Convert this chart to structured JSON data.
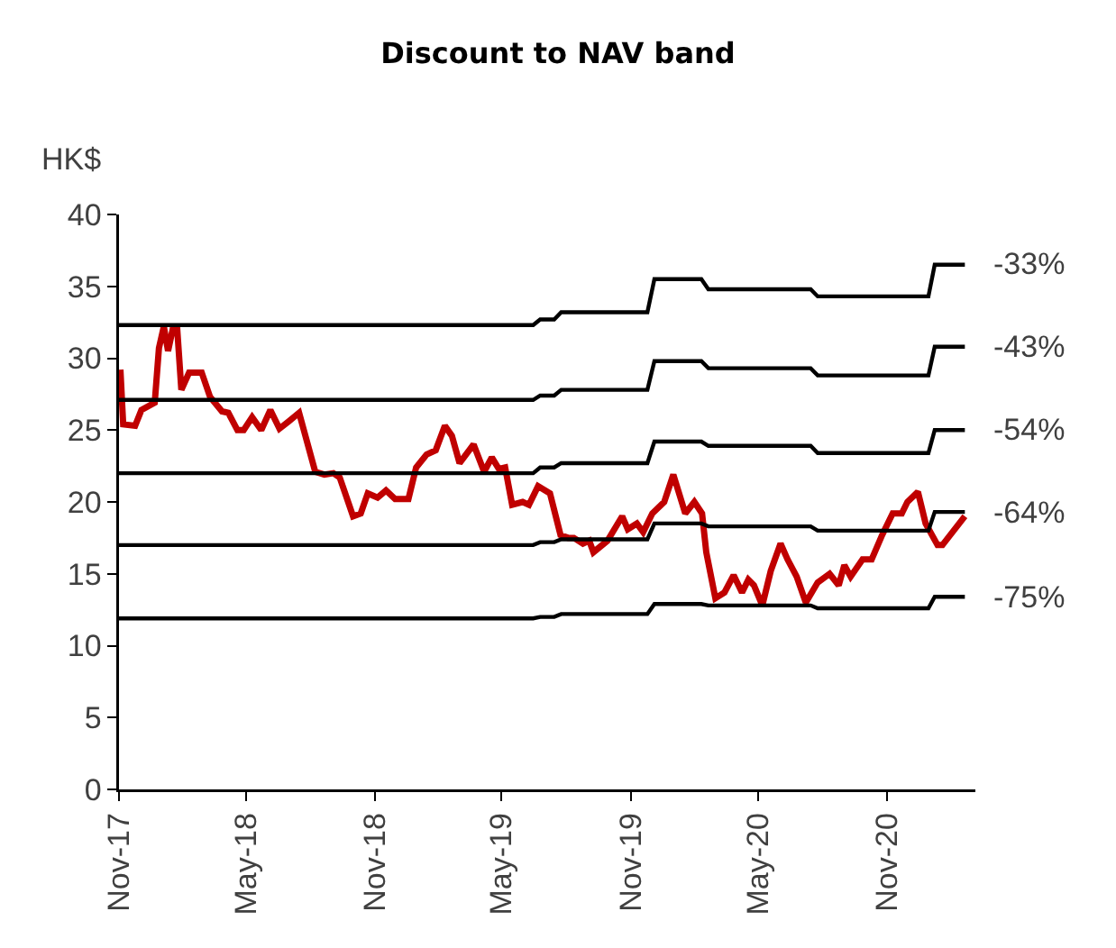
{
  "chart_data": {
    "type": "line",
    "title": "Discount to NAV band",
    "ylabel": "HK$",
    "xlim": [
      "2017-11-01",
      "2021-03-07"
    ],
    "xticks": [
      {
        "value": "2017-11-01",
        "label": "Nov-17"
      },
      {
        "value": "2018-05-01",
        "label": "May-18"
      },
      {
        "value": "2018-11-01",
        "label": "Nov-18"
      },
      {
        "value": "2019-05-01",
        "label": "May-19"
      },
      {
        "value": "2019-11-01",
        "label": "Nov-19"
      },
      {
        "value": "2020-05-01",
        "label": "May-20"
      },
      {
        "value": "2020-11-01",
        "label": "Nov-20"
      }
    ],
    "ylim": [
      0,
      40
    ],
    "yticks": [
      0,
      5,
      10,
      15,
      20,
      25,
      30,
      35,
      40
    ],
    "grid": false,
    "legend": false,
    "marker": "none",
    "line_style": "solid",
    "series": [
      {
        "color": "#c00000",
        "x": [
          "2017-11-03",
          "2017-11-07",
          "2017-11-24",
          "2017-12-03",
          "2017-12-22",
          "2017-12-28",
          "2018-01-04",
          "2018-01-10",
          "2018-01-17",
          "2018-01-23",
          "2018-01-29",
          "2018-02-09",
          "2018-02-27",
          "2018-03-11",
          "2018-03-28",
          "2018-04-06",
          "2018-04-19",
          "2018-04-28",
          "2018-05-10",
          "2018-05-23",
          "2018-06-05",
          "2018-06-18",
          "2018-07-01",
          "2018-07-16",
          "2018-08-08",
          "2018-08-21",
          "2018-09-03",
          "2018-09-12",
          "2018-10-01",
          "2018-10-12",
          "2018-10-22",
          "2018-11-05",
          "2018-11-17",
          "2018-11-30",
          "2018-12-19",
          "2018-12-30",
          "2019-01-14",
          "2019-01-27",
          "2019-02-09",
          "2019-02-19",
          "2019-03-02",
          "2019-03-22",
          "2019-04-06",
          "2019-04-17",
          "2019-04-27",
          "2019-05-06",
          "2019-05-16",
          "2019-05-31",
          "2019-06-09",
          "2019-06-22",
          "2019-07-09",
          "2019-07-24",
          "2019-08-04",
          "2019-08-12",
          "2019-08-25",
          "2019-09-03",
          "2019-09-09",
          "2019-09-29",
          "2019-10-20",
          "2019-10-28",
          "2019-11-10",
          "2019-11-19",
          "2019-12-02",
          "2019-12-19",
          "2020-01-01",
          "2020-01-18",
          "2020-01-31",
          "2020-02-11",
          "2020-02-17",
          "2020-03-01",
          "2020-03-14",
          "2020-03-27",
          "2020-04-08",
          "2020-04-17",
          "2020-04-25",
          "2020-05-07",
          "2020-05-19",
          "2020-06-02",
          "2020-06-12",
          "2020-06-25",
          "2020-07-08",
          "2020-07-25",
          "2020-08-11",
          "2020-08-24",
          "2020-09-01",
          "2020-09-10",
          "2020-09-27",
          "2020-10-10",
          "2020-10-25",
          "2020-11-09",
          "2020-11-22",
          "2020-11-30",
          "2020-12-15",
          "2020-12-26",
          "2021-01-12",
          "2021-01-19",
          "2021-02-20"
        ],
        "values": [
          29.2,
          25.4,
          25.3,
          26.4,
          26.9,
          30.7,
          32.2,
          30.5,
          32.1,
          32.1,
          27.8,
          29.0,
          29.0,
          27.3,
          26.3,
          26.2,
          25.0,
          25.0,
          25.9,
          25.0,
          26.4,
          25.1,
          25.6,
          26.2,
          22.1,
          21.9,
          22.0,
          21.7,
          19.0,
          19.2,
          20.6,
          20.3,
          20.8,
          20.2,
          20.2,
          22.4,
          23.3,
          23.6,
          25.3,
          24.6,
          22.7,
          24.0,
          22.1,
          23.1,
          22.3,
          22.4,
          19.8,
          20.0,
          19.8,
          21.1,
          20.6,
          17.7,
          17.5,
          17.5,
          17.1,
          17.3,
          16.5,
          17.3,
          19.0,
          18.1,
          18.5,
          17.9,
          19.2,
          20.0,
          21.9,
          19.2,
          20.0,
          19.2,
          16.5,
          13.3,
          13.7,
          14.9,
          13.7,
          14.6,
          14.2,
          12.8,
          15.2,
          17.1,
          16.0,
          14.8,
          13.0,
          14.4,
          15.0,
          14.2,
          15.6,
          14.8,
          16.0,
          16.0,
          17.7,
          19.2,
          19.2,
          20.0,
          20.7,
          18.5,
          17.0,
          17.0,
          19.0
        ]
      },
      {
        "name": "-33%",
        "color": "#000000",
        "x": [
          "2017-11-01",
          "2019-06-15",
          "2019-06-25",
          "2019-07-15",
          "2019-07-25",
          "2019-11-25",
          "2019-12-05",
          "2020-02-10",
          "2020-02-20",
          "2020-07-15",
          "2020-07-25",
          "2020-12-30",
          "2021-01-08",
          "2021-02-20"
        ],
        "values": [
          32.3,
          32.3,
          32.7,
          32.7,
          33.2,
          33.2,
          35.5,
          35.5,
          34.8,
          34.8,
          34.3,
          34.3,
          36.5,
          36.5
        ]
      },
      {
        "name": "-43%",
        "color": "#000000",
        "x": [
          "2017-11-01",
          "2019-06-15",
          "2019-06-25",
          "2019-07-15",
          "2019-07-25",
          "2019-11-25",
          "2019-12-05",
          "2020-02-10",
          "2020-02-20",
          "2020-07-15",
          "2020-07-25",
          "2020-12-30",
          "2021-01-08",
          "2021-02-20"
        ],
        "values": [
          27.1,
          27.1,
          27.4,
          27.4,
          27.8,
          27.8,
          29.8,
          29.8,
          29.3,
          29.3,
          28.8,
          28.8,
          30.8,
          30.8
        ]
      },
      {
        "name": "-54%",
        "color": "#000000",
        "x": [
          "2017-11-01",
          "2019-06-15",
          "2019-06-25",
          "2019-07-15",
          "2019-07-25",
          "2019-11-25",
          "2019-12-05",
          "2020-02-10",
          "2020-02-20",
          "2020-07-15",
          "2020-07-25",
          "2020-12-30",
          "2021-01-08",
          "2021-02-20"
        ],
        "values": [
          22.0,
          22.0,
          22.4,
          22.4,
          22.7,
          22.7,
          24.2,
          24.2,
          23.9,
          23.9,
          23.4,
          23.4,
          25.0,
          25.0
        ]
      },
      {
        "name": "-64%",
        "color": "#000000",
        "x": [
          "2017-11-01",
          "2019-06-15",
          "2019-06-25",
          "2019-07-15",
          "2019-07-25",
          "2019-11-25",
          "2019-12-05",
          "2020-02-10",
          "2020-02-20",
          "2020-07-15",
          "2020-07-25",
          "2020-12-30",
          "2021-01-08",
          "2021-02-20"
        ],
        "values": [
          17.0,
          17.0,
          17.2,
          17.2,
          17.4,
          17.4,
          18.5,
          18.5,
          18.3,
          18.3,
          18.0,
          18.0,
          19.3,
          19.3
        ]
      },
      {
        "name": "-75%",
        "color": "#000000",
        "x": [
          "2017-11-01",
          "2019-06-15",
          "2019-06-25",
          "2019-07-15",
          "2019-07-25",
          "2019-11-25",
          "2019-12-05",
          "2020-02-10",
          "2020-02-20",
          "2020-07-15",
          "2020-07-25",
          "2020-12-30",
          "2021-01-08",
          "2021-02-20"
        ],
        "values": [
          11.9,
          11.9,
          12.0,
          12.0,
          12.2,
          12.2,
          12.9,
          12.9,
          12.8,
          12.8,
          12.6,
          12.6,
          13.4,
          13.4
        ]
      }
    ]
  }
}
